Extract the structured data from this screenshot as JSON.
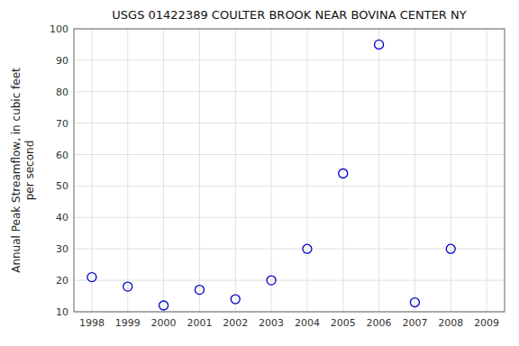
{
  "chart_data": {
    "type": "scatter",
    "title": "USGS 01422389 COULTER BROOK NEAR BOVINA CENTER NY",
    "ylabel": "Annual Peak Streamflow, in cubic feet\nper second",
    "x": [
      1998,
      1999,
      2000,
      2001,
      2002,
      2003,
      2004,
      2005,
      2006,
      2007,
      2008
    ],
    "values": [
      21,
      18,
      12,
      17,
      14,
      20,
      30,
      54,
      95,
      13,
      30
    ],
    "color": "#0000cc",
    "marker": "circle",
    "xlim": [
      1997.5,
      2009.5
    ],
    "ylim": [
      10,
      100
    ],
    "xticks": [
      1998,
      1999,
      2000,
      2001,
      2002,
      2003,
      2004,
      2005,
      2006,
      2007,
      2008,
      2009
    ],
    "yticks": [
      10,
      20,
      30,
      40,
      50,
      60,
      70,
      80,
      90,
      100
    ],
    "grid": true
  }
}
